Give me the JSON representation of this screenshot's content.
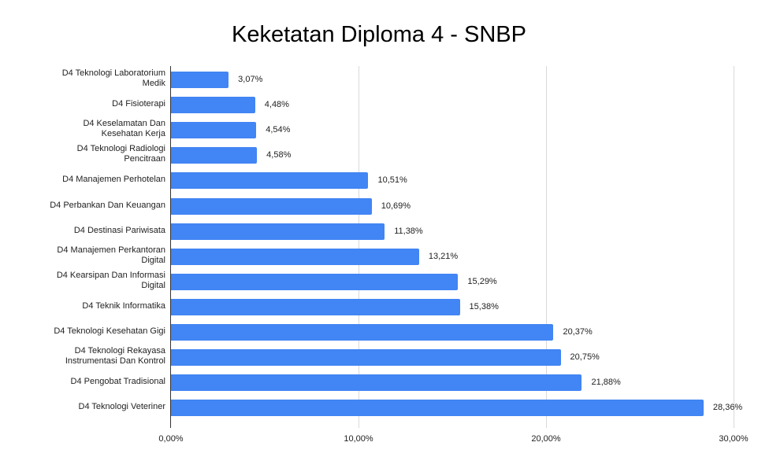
{
  "chart_data": {
    "type": "bar",
    "orientation": "horizontal",
    "title": "Keketatan Diploma 4 - SNBP",
    "xlabel": "",
    "ylabel": "",
    "xlim": [
      0,
      30
    ],
    "x_ticks": [
      "0,00%",
      "10,00%",
      "20,00%",
      "30,00%"
    ],
    "grid": true,
    "legend": null,
    "bar_color": "#4285f4",
    "categories": [
      "D4 Teknologi Laboratorium Medik",
      "D4 Fisioterapi",
      "D4 Keselamatan Dan Kesehatan Kerja",
      "D4 Teknologi Radiologi Pencitraan",
      "D4 Manajemen Perhotelan",
      "D4 Perbankan Dan Keuangan",
      "D4 Destinasi Pariwisata",
      "D4 Manajemen Perkantoran Digital",
      "D4 Kearsipan Dan Informasi Digital",
      "D4 Teknik Informatika",
      "D4 Teknologi Kesehatan Gigi",
      "D4 Teknologi Rekayasa Instrumentasi Dan Kontrol",
      "D4 Pengobat Tradisional",
      "D4 Teknologi Veteriner"
    ],
    "values": [
      3.07,
      4.48,
      4.54,
      4.58,
      10.51,
      10.69,
      11.38,
      13.21,
      15.29,
      15.38,
      20.37,
      20.75,
      21.88,
      28.36
    ],
    "value_labels": [
      "3,07%",
      "4,48%",
      "4,54%",
      "4,58%",
      "10,51%",
      "10,69%",
      "11,38%",
      "13,21%",
      "15,29%",
      "15,38%",
      "20,37%",
      "20,75%",
      "21,88%",
      "28,36%"
    ]
  },
  "rows": [
    {
      "line1": "D4 Teknologi Laboratorium",
      "line2": "Medik"
    },
    {
      "line1": "D4 Fisioterapi",
      "line2": ""
    },
    {
      "line1": "D4 Keselamatan Dan",
      "line2": "Kesehatan Kerja"
    },
    {
      "line1": "D4 Teknologi Radiologi",
      "line2": "Pencitraan"
    },
    {
      "line1": "D4 Manajemen Perhotelan",
      "line2": ""
    },
    {
      "line1": "D4 Perbankan Dan Keuangan",
      "line2": ""
    },
    {
      "line1": "D4 Destinasi Pariwisata",
      "line2": ""
    },
    {
      "line1": "D4 Manajemen Perkantoran",
      "line2": "Digital"
    },
    {
      "line1": "D4 Kearsipan Dan Informasi",
      "line2": "Digital"
    },
    {
      "line1": "D4 Teknik Informatika",
      "line2": ""
    },
    {
      "line1": "D4 Teknologi Kesehatan Gigi",
      "line2": ""
    },
    {
      "line1": "D4 Teknologi Rekayasa",
      "line2": "Instrumentasi Dan Kontrol"
    },
    {
      "line1": "D4 Pengobat Tradisional",
      "line2": ""
    },
    {
      "line1": "D4 Teknologi Veteriner",
      "line2": ""
    }
  ]
}
